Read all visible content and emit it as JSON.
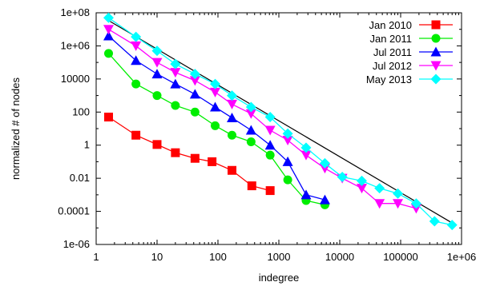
{
  "chart_data": {
    "type": "line",
    "xscale": "log",
    "yscale": "log",
    "xlabel": "indegree",
    "ylabel": "normalized # of nodes",
    "xlim": [
      1,
      1000000
    ],
    "ylim": [
      1e-06,
      100000000
    ],
    "x_ticks": [
      "1",
      "10",
      "100",
      "1000",
      "10000",
      "100000",
      "1e+06"
    ],
    "y_ticks": [
      "1e-06",
      "0.0001",
      "0.01",
      "1",
      "100",
      "10000",
      "1e+06",
      "1e+08"
    ],
    "grid": false,
    "legend_position": "top-right",
    "reference_line": {
      "x": [
        1.7,
        700000
      ],
      "y": [
        30000000,
        2e-05
      ]
    },
    "series": [
      {
        "name": "Jan 2010",
        "color": "#ff0000",
        "marker": "square",
        "x": [
          1.6,
          4.5,
          10,
          20,
          42,
          80,
          170,
          360,
          720
        ],
        "y": [
          50,
          4,
          1.1,
          0.35,
          0.16,
          0.1,
          0.03,
          0.0035,
          0.0018
        ]
      },
      {
        "name": "Jan 2011",
        "color": "#00ee00",
        "marker": "circle",
        "x": [
          1.6,
          4.5,
          10,
          20,
          42,
          90,
          170,
          350,
          720,
          1400,
          2800,
          5700
        ],
        "y": [
          350000,
          5000,
          1000,
          250,
          100,
          15,
          4,
          1.6,
          0.25,
          0.008,
          0.00045,
          0.00025
        ]
      },
      {
        "name": "Jul 2011",
        "color": "#0000ff",
        "marker": "triangle-up",
        "x": [
          1.6,
          4.5,
          10,
          20,
          42,
          90,
          170,
          350,
          720,
          1400,
          2800,
          5700
        ],
        "y": [
          4000000,
          130000,
          20000,
          5000,
          1200,
          200,
          45,
          8,
          1,
          0.1,
          0.001,
          0.0005
        ]
      },
      {
        "name": "Jul 2012",
        "color": "#ff00ff",
        "marker": "triangle-down",
        "x": [
          1.6,
          4.5,
          10,
          20,
          42,
          90,
          170,
          350,
          720,
          1400,
          2800,
          5700,
          11000,
          23000,
          45000,
          90000,
          180000
        ],
        "y": [
          10000000,
          1000000,
          100000,
          25000,
          8000,
          1600,
          300,
          80,
          8,
          2,
          0.25,
          0.04,
          0.01,
          0.0025,
          0.0003,
          0.0003,
          0.00015
        ]
      },
      {
        "name": "May 2013",
        "color": "#00ffff",
        "marker": "diamond",
        "x": [
          1.6,
          4.5,
          10,
          20,
          42,
          90,
          170,
          350,
          720,
          1400,
          2800,
          5700,
          11000,
          23000,
          45000,
          90000,
          180000,
          360000,
          700000
        ],
        "y": [
          50000000,
          3500000,
          500000,
          80000,
          20000,
          5000,
          1000,
          200,
          50,
          5,
          0.7,
          0.08,
          0.012,
          0.007,
          0.0025,
          0.0012,
          0.0003,
          2.5e-05,
          1.5e-05
        ]
      }
    ]
  }
}
